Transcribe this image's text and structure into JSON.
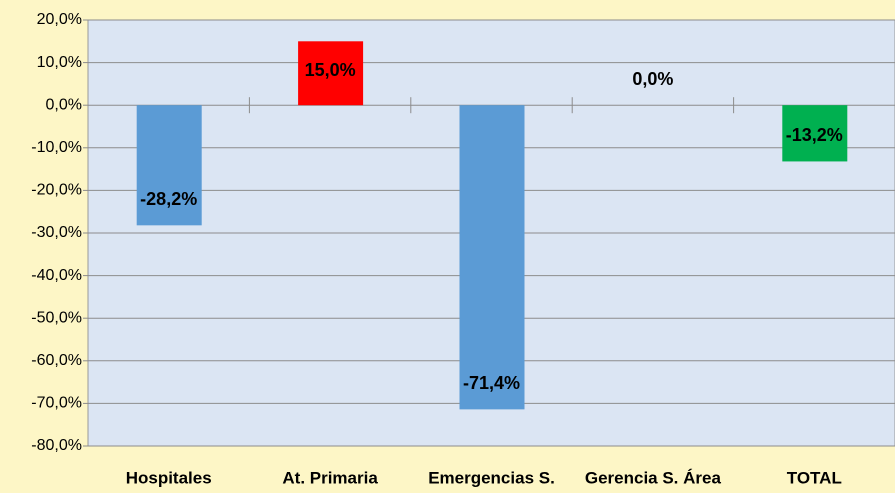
{
  "chart_data": {
    "type": "bar",
    "categories": [
      "Hospitales",
      "At. Primaria",
      "Emergencias S.",
      "Gerencia S. Área",
      "TOTAL"
    ],
    "values": [
      -28.2,
      15.0,
      -71.4,
      0.0,
      -13.2
    ],
    "value_labels": [
      "-28,2%",
      "15,0%",
      "-71,4%",
      "0,0%",
      "-13,2%"
    ],
    "colors": [
      "#5b9bd5",
      "#ff0000",
      "#5b9bd5",
      "#5b9bd5",
      "#00b050"
    ],
    "ylim": [
      -80,
      20
    ],
    "yticks": [
      {
        "value": 20,
        "label": "20,0%"
      },
      {
        "value": 10,
        "label": "10,0%"
      },
      {
        "value": 0,
        "label": "0,0%"
      },
      {
        "value": -10,
        "label": "-10,0%"
      },
      {
        "value": -20,
        "label": "-20,0%"
      },
      {
        "value": -30,
        "label": "-30,0%"
      },
      {
        "value": -40,
        "label": "-40,0%"
      },
      {
        "value": -50,
        "label": "-50,0%"
      },
      {
        "value": -60,
        "label": "-60,0%"
      },
      {
        "value": -70,
        "label": "-70,0%"
      },
      {
        "value": -80,
        "label": "-80,0%"
      }
    ],
    "grid": true
  }
}
